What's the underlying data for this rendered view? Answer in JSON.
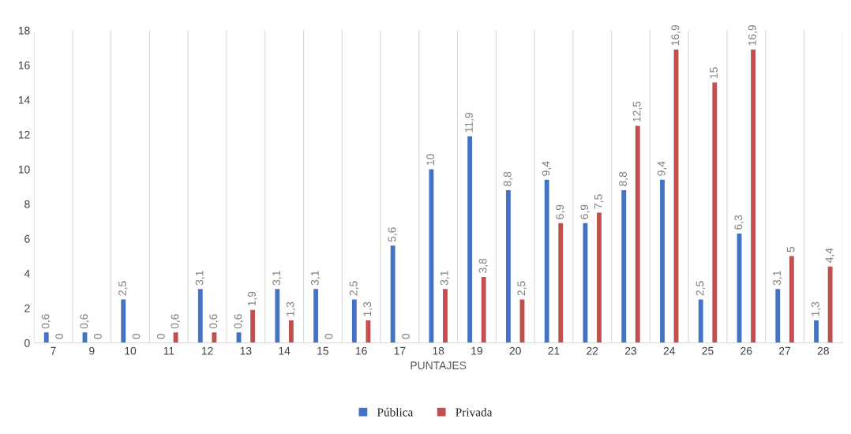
{
  "chart_data": {
    "type": "bar",
    "xlabel": "PUNTAJES",
    "categories": [
      "7",
      "9",
      "10",
      "11",
      "12",
      "13",
      "14",
      "15",
      "16",
      "17",
      "18",
      "19",
      "20",
      "21",
      "22",
      "23",
      "24",
      "25",
      "26",
      "27",
      "28"
    ],
    "series": [
      {
        "name": "Pública",
        "color": "#4472c4",
        "values": [
          0.6,
          0.6,
          2.5,
          0,
          3.1,
          0.6,
          3.1,
          3.1,
          2.5,
          5.6,
          10,
          11.9,
          8.8,
          9.4,
          6.9,
          8.8,
          9.4,
          2.5,
          6.3,
          3.1,
          1.3
        ],
        "value_labels": [
          "0,6",
          "0,6",
          "2,5",
          "0",
          "3,1",
          "0,6",
          "3,1",
          "3,1",
          "2,5",
          "5,6",
          "10",
          "11,9",
          "8,8",
          "9,4",
          "6,9",
          "8,8",
          "9,4",
          "2,5",
          "6,3",
          "3,1",
          "1,3"
        ]
      },
      {
        "name": "Privada",
        "color": "#c0504d",
        "values": [
          0,
          0,
          0,
          0.6,
          0.6,
          1.9,
          1.3,
          0,
          1.3,
          0,
          3.1,
          3.8,
          2.5,
          6.9,
          7.5,
          12.5,
          16.9,
          15,
          16.9,
          5,
          4.4
        ],
        "value_labels": [
          "0",
          "0",
          "0",
          "0,6",
          "0,6",
          "1,9",
          "1,3",
          "0",
          "1,3",
          "0",
          "3,1",
          "3,8",
          "2,5",
          "6,9",
          "7,5",
          "12,5",
          "16,9",
          "15",
          "16,9",
          "5",
          "4,4"
        ]
      }
    ],
    "ylim": [
      0,
      18
    ],
    "yticks": [
      0,
      2,
      4,
      6,
      8,
      10,
      12,
      14,
      16,
      18
    ],
    "grid": "x",
    "legend": "bottom"
  }
}
